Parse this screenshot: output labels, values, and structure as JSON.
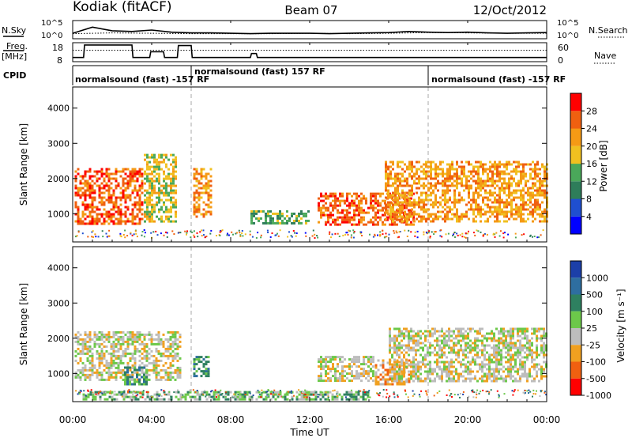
{
  "header": {
    "station": "Kodiak (fitACF)",
    "beam": "Beam 07",
    "date": "12/Oct/2012"
  },
  "top_panels": {
    "nsky_label": "N.Sky",
    "nsearch_label": "N.Search",
    "noise_ticks": [
      "10^5",
      "10^0"
    ],
    "freq_label_1": "Freq.",
    "freq_label_2": "[MHz]",
    "freq_ticks": [
      "18",
      "8"
    ],
    "nave_label": "Nave",
    "nave_ticks": [
      "60",
      "0"
    ],
    "cpid_label": "CPID",
    "cpid_segments": [
      {
        "label": "normalsound (fast) -157 RF",
        "start_h": 0,
        "end_h": 6
      },
      {
        "label": "normalsound (fast) 157 RF",
        "start_h": 6,
        "end_h": 18
      },
      {
        "label": "normalsound (fast) -157 RF",
        "start_h": 18,
        "end_h": 24
      }
    ]
  },
  "time_axis": {
    "ticks": [
      "00:00",
      "04:00",
      "08:00",
      "12:00",
      "16:00",
      "20:00",
      "00:00"
    ],
    "xlabel": "Time UT"
  },
  "power_panel": {
    "ylabel": "Slant Range [km]",
    "yticks": [
      "1000",
      "2000",
      "3000",
      "4000"
    ],
    "colorbar_label": "Power [dB]",
    "colorbar_ticks": [
      "4",
      "8",
      "12",
      "16",
      "20",
      "24",
      "28"
    ],
    "colors": [
      "#0000ff",
      "#1f4fd0",
      "#2e7d5a",
      "#4aa85a",
      "#f0c020",
      "#f59a15",
      "#f06010",
      "#ff0000"
    ]
  },
  "velocity_panel": {
    "ylabel": "Slant Range [km]",
    "yticks": [
      "1000",
      "2000",
      "3000",
      "4000"
    ],
    "colorbar_label": "Velocity [m s⁻¹]",
    "colorbar_ticks": [
      "1000",
      "500",
      "100",
      "25",
      "-25",
      "-100",
      "-500",
      "-1000"
    ],
    "colors": [
      "#1c3fa8",
      "#2e6ea0",
      "#2e8060",
      "#6cc84a",
      "#bdbdbd",
      "#f0a020",
      "#f06010",
      "#ff0000"
    ]
  },
  "chart_data": [
    {
      "type": "line",
      "series": [
        {
          "name": "N.Sky",
          "x": [
            0,
            1,
            2,
            3,
            4,
            5,
            6,
            7,
            8,
            9,
            10,
            11,
            12,
            13,
            14,
            15,
            16,
            17,
            18,
            19,
            20,
            21,
            22,
            23,
            24
          ],
          "values": [
            1.5,
            3.2,
            2.2,
            2.0,
            2.4,
            1.8,
            1.6,
            1.6,
            1.5,
            1.4,
            1.5,
            1.5,
            1.5,
            1.4,
            1.5,
            1.6,
            1.7,
            2.0,
            1.8,
            1.7,
            1.8,
            1.6,
            1.5,
            1.6,
            1.7
          ]
        },
        {
          "name": "N.Search",
          "x": [
            0,
            2,
            4,
            6,
            8,
            10,
            12,
            14,
            16,
            18,
            20,
            22,
            24
          ],
          "values": [
            1.4,
            1.6,
            1.5,
            1.4,
            1.4,
            1.4,
            1.5,
            1.4,
            1.5,
            1.7,
            1.6,
            1.5,
            1.5
          ]
        }
      ],
      "ylim": [
        0,
        5
      ]
    },
    {
      "type": "line",
      "series": [
        {
          "name": "Freq.",
          "x": [
            0,
            0.55,
            0.6,
            3.0,
            3.05,
            3.9,
            3.95,
            4.6,
            4.65,
            5.3,
            5.35,
            6.0,
            6.05,
            9.0,
            9.05,
            9.3,
            9.35,
            24
          ],
          "values": [
            10.2,
            10.2,
            16.8,
            16.8,
            10.2,
            10.2,
            13.2,
            13.2,
            10.2,
            10.2,
            16.5,
            16.5,
            10.2,
            10.2,
            12.3,
            12.3,
            10.2,
            10.2
          ]
        },
        {
          "name": "Nave",
          "x": [
            0,
            24
          ],
          "values": [
            14,
            14
          ]
        }
      ],
      "ylim": [
        8,
        18
      ]
    },
    {
      "type": "heatmap",
      "xlim": [
        0,
        24
      ],
      "ylim": [
        200,
        4600
      ],
      "colorbar_ticks": [
        4,
        8,
        12,
        16,
        20,
        24,
        28
      ],
      "regions": [
        {
          "start_h": 0.1,
          "end_h": 3.5,
          "range_km": [
            700,
            2300
          ],
          "level": 6
        },
        {
          "start_h": 3.6,
          "end_h": 5.2,
          "range_km": [
            800,
            2700
          ],
          "level": 4
        },
        {
          "start_h": 6.1,
          "end_h": 7.0,
          "range_km": [
            900,
            2300
          ],
          "level": 5
        },
        {
          "start_h": 9.0,
          "end_h": 12.0,
          "range_km": [
            700,
            1100
          ],
          "level": 3
        },
        {
          "start_h": 12.4,
          "end_h": 17.3,
          "range_km": [
            700,
            1600
          ],
          "level": 6
        },
        {
          "start_h": 15.8,
          "end_h": 24.0,
          "range_km": [
            800,
            2500
          ],
          "level": 5
        }
      ]
    },
    {
      "type": "heatmap",
      "xlim": [
        0,
        24
      ],
      "ylim": [
        200,
        4600
      ],
      "colorbar_ticks": [
        1000,
        500,
        100,
        25,
        -25,
        -100,
        -500,
        -1000
      ],
      "regions": [
        {
          "start_h": 0.1,
          "end_h": 5.5,
          "range_km": [
            800,
            2200
          ],
          "level": 4
        },
        {
          "start_h": 2.6,
          "end_h": 3.8,
          "range_km": [
            700,
            1200
          ],
          "level": 2
        },
        {
          "start_h": 6.1,
          "end_h": 6.9,
          "range_km": [
            900,
            1500
          ],
          "level": 2
        },
        {
          "start_h": 12.4,
          "end_h": 15.2,
          "range_km": [
            800,
            1500
          ],
          "level": 4
        },
        {
          "start_h": 15.3,
          "end_h": 17.0,
          "range_km": [
            700,
            1400
          ],
          "level": 5
        },
        {
          "start_h": 16.0,
          "end_h": 24.0,
          "range_km": [
            800,
            2300
          ],
          "level": 4
        },
        {
          "start_h": 0.5,
          "end_h": 15.0,
          "range_km": [
            250,
            500
          ],
          "level": 3
        }
      ]
    }
  ]
}
